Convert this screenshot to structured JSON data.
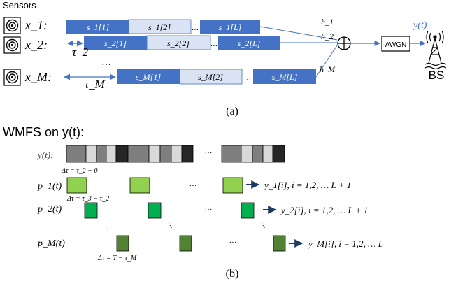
{
  "part_a": {
    "sensors_label": "Sensors",
    "sensor_labels": [
      "x_1:",
      "x_2:",
      "x_M:"
    ],
    "rows": [
      [
        "s_1[1]",
        "s_1[2]",
        "…",
        "s_1[L]"
      ],
      [
        "s_2[1]",
        "s_2[2]",
        "…",
        "s_2[L]"
      ],
      [
        "s_M[1]",
        "s_M[2]",
        "…",
        "s_M[L]"
      ]
    ],
    "delay_labels": [
      "τ_2",
      "τ_M"
    ],
    "channel_labels": [
      "h_1",
      "h_2",
      "h_M"
    ],
    "awgn_label": "AWGN",
    "output_label": "y(t)",
    "bs_label": "BS",
    "row_ellipsis": "…",
    "caption": "(a)"
  },
  "part_b": {
    "title": "WMFS on y(t):",
    "signal_label": "y(t):",
    "signal_ellipsis": "···",
    "delta_labels": [
      "Δτ = τ_2 − 0",
      "Δτ = τ_3 − τ_2",
      "Δτ = T − τ_M"
    ],
    "filter_labels": [
      "p_1(t)",
      "p_2(t)",
      "p_M(t)"
    ],
    "output_labels": [
      "y_1[i], i = 1,2, … L + 1",
      "y_2[i], i = 1,2, … L + 1",
      "y_M[i], i = 1,2, … L"
    ],
    "ellipsis": "···",
    "caption": "(b)"
  },
  "colors": {
    "block_dark": "#4472C4",
    "block_light": "#DAE3F3",
    "signal_dark": "#7F7F7F",
    "signal_light": "#D9D9D9",
    "signal_black": "#262626",
    "p1_green": "#92D050",
    "p2_green": "#00B050",
    "pM_green": "#548235",
    "line_blue": "#4472C4",
    "arrow_dark": "#1F3864"
  }
}
